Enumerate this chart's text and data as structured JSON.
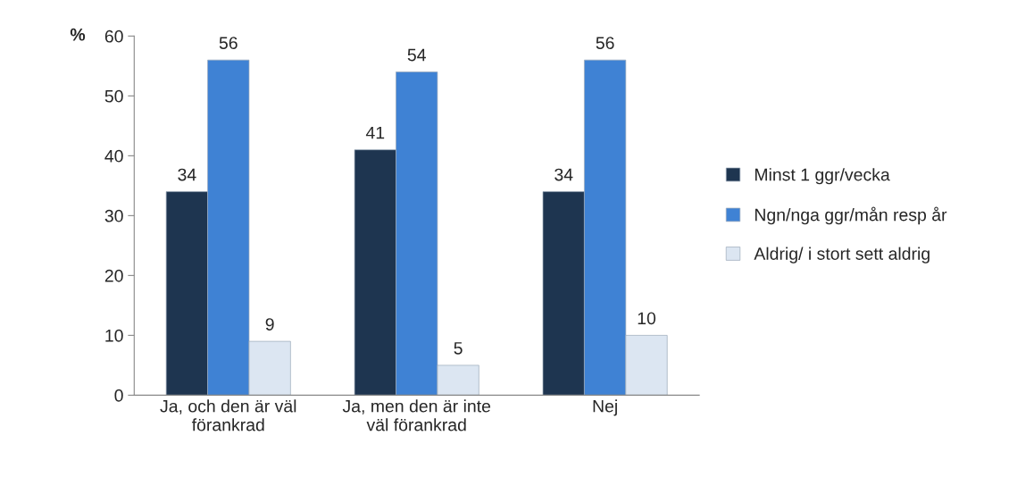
{
  "chart_data": {
    "type": "bar",
    "ylabel": "%",
    "categories": [
      "Ja, och den är väl\nförankrad",
      "Ja, men den är inte\nväl förankrad",
      "Nej"
    ],
    "series": [
      {
        "name": "Minst 1 ggr/vecka",
        "color": "#1e3550",
        "values": [
          34,
          41,
          34
        ]
      },
      {
        "name": "Ngn/nga ggr/mån resp år",
        "color": "#3f82d4",
        "values": [
          56,
          54,
          56
        ]
      },
      {
        "name": "Aldrig/ i stort sett aldrig",
        "color": "#dce6f2",
        "values": [
          9,
          5,
          10
        ]
      }
    ],
    "ylim": [
      0,
      60
    ],
    "yticks": [
      0,
      10,
      20,
      30,
      40,
      50,
      60
    ],
    "data_labels": true,
    "grid": false,
    "legend": "right"
  }
}
